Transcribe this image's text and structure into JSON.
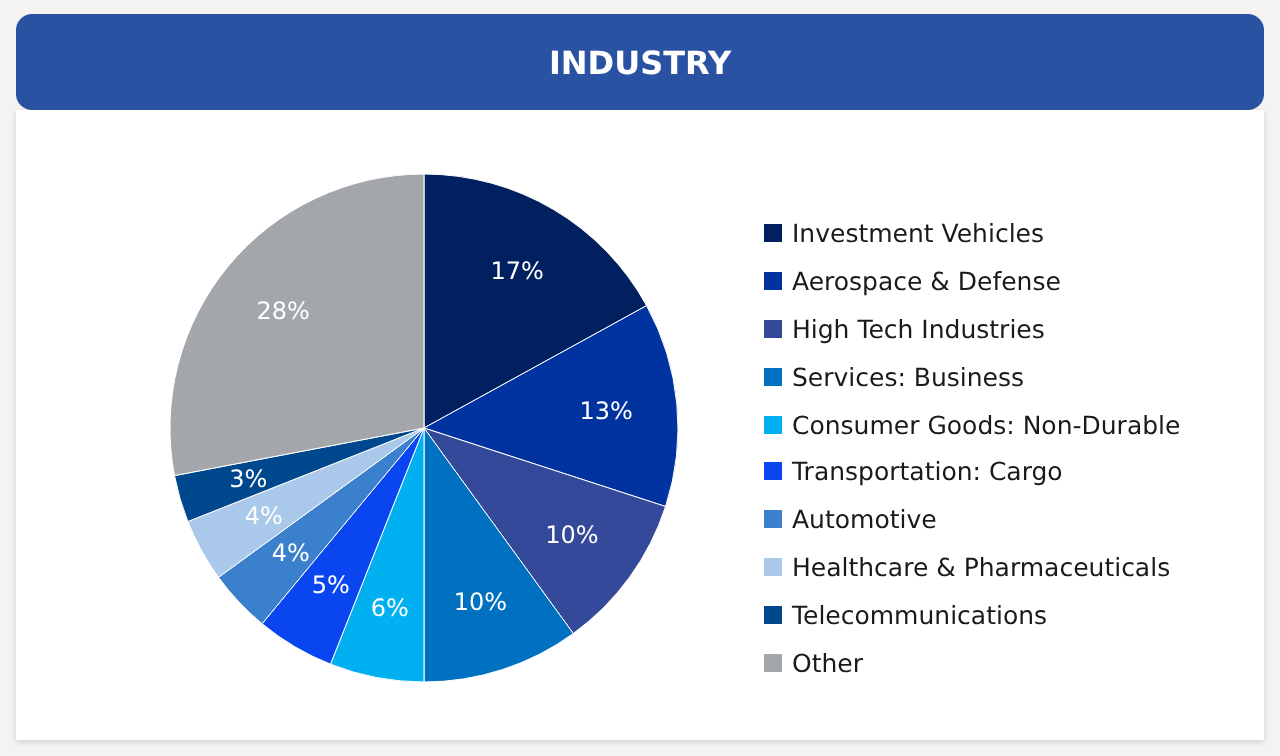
{
  "chart_data": {
    "type": "pie",
    "title": "INDUSTRY",
    "categories": [
      "Investment Vehicles",
      "Aerospace & Defense",
      "High Tech Industries",
      "Services: Business",
      "Consumer Goods: Non-Durable",
      "Transportation: Cargo",
      "Automotive",
      "Healthcare & Pharmaceuticals",
      "Telecommunications",
      "Other"
    ],
    "values": [
      17,
      13,
      10,
      10,
      6,
      5,
      4,
      4,
      3,
      28
    ],
    "colors": [
      "#012060",
      "#0033a0",
      "#34499a",
      "#0070c0",
      "#00b0f0",
      "#0a46f0",
      "#3a80cc",
      "#a9c8ea",
      "#00488e",
      "#a3a6ab"
    ],
    "value_labels": [
      "17%",
      "13%",
      "10%",
      "10%",
      "6%",
      "5%",
      "4%",
      "4%",
      "3%",
      "28%"
    ],
    "legend": "right"
  }
}
